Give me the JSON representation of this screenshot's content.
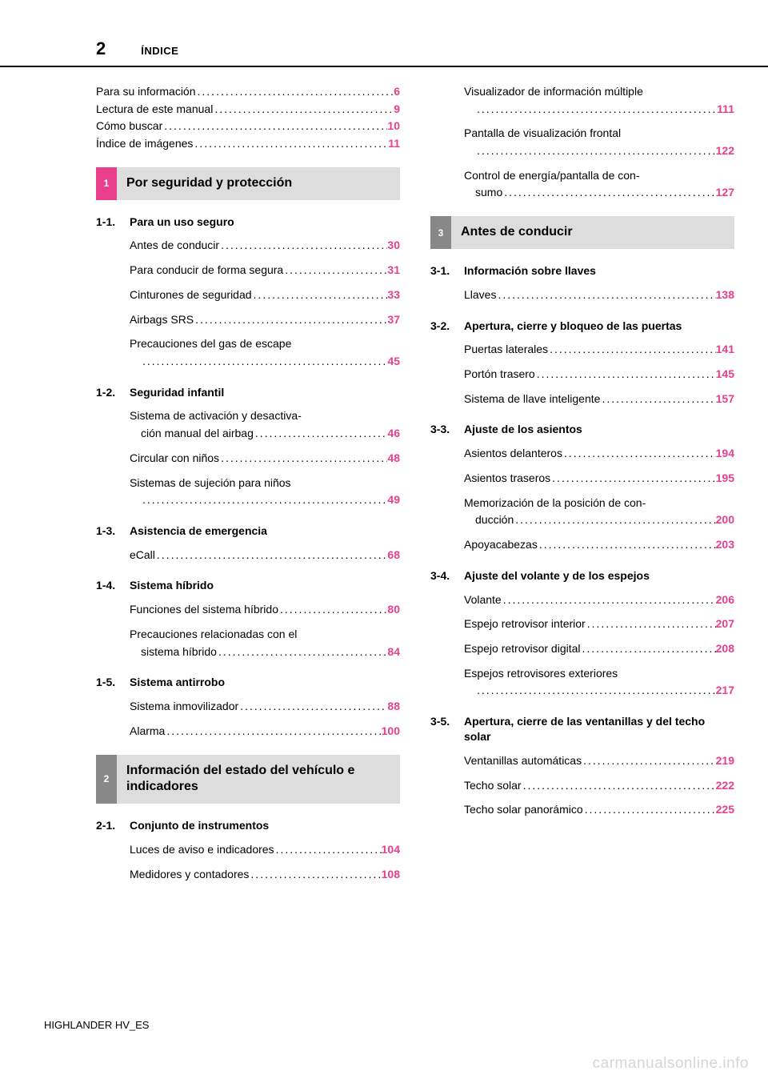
{
  "page": {
    "number": "2",
    "header": "ÍNDICE",
    "footer": "HIGHLANDER HV_ES",
    "watermark": "carmanualsonline.info"
  },
  "colors": {
    "accent": "#e83e8c",
    "gray_tab": "#888888",
    "chapter_bg": "#dddddd",
    "rule": "#000000",
    "watermark": "#d6d6d6"
  },
  "front": [
    {
      "label": "Para su información",
      "page": "6"
    },
    {
      "label": "Lectura de este manual",
      "page": "9"
    },
    {
      "label": "Cómo buscar",
      "page": "10"
    },
    {
      "label": "Índice de imágenes",
      "page": "11"
    }
  ],
  "chapters": [
    {
      "num": "1",
      "tab_color": "pink",
      "title": "Por seguridad y protección",
      "sections": [
        {
          "num": "1-1.",
          "title": "Para un uso seguro",
          "entries": [
            {
              "label": "Antes de conducir",
              "page": "30"
            },
            {
              "label": "Para conducir de forma segura",
              "page": "31",
              "tight": true
            },
            {
              "label": "Cinturones de seguridad",
              "page": "33"
            },
            {
              "label": "Airbags SRS",
              "page": "37"
            },
            {
              "label": "Precauciones del gas de escape",
              "page": "45",
              "wrap": true
            }
          ]
        },
        {
          "num": "1-2.",
          "title": "Seguridad infantil",
          "entries": [
            {
              "label1": "Sistema de activación y desactiva-",
              "label2": "ción manual del airbag",
              "page": "46",
              "twoline": true
            },
            {
              "label": "Circular con niños",
              "page": "48"
            },
            {
              "label": "Sistemas de sujeción para niños",
              "page": "49",
              "wrap": true
            }
          ]
        },
        {
          "num": "1-3.",
          "title": "Asistencia de emergencia",
          "entries": [
            {
              "label": "eCall",
              "page": "68"
            }
          ]
        },
        {
          "num": "1-4.",
          "title": "Sistema híbrido",
          "entries": [
            {
              "label": "Funciones del sistema híbrido",
              "page": "80",
              "tight": true
            },
            {
              "label1": "Precauciones relacionadas con el",
              "label2": "sistema híbrido",
              "page": "84",
              "twoline": true
            }
          ]
        },
        {
          "num": "1-5.",
          "title": "Sistema antirrobo",
          "entries": [
            {
              "label": "Sistema inmovilizador",
              "page": "88"
            },
            {
              "label": "Alarma",
              "page": "100"
            }
          ]
        }
      ]
    },
    {
      "num": "2",
      "tab_color": "gray",
      "title": "Información del estado del vehículo e indicadores",
      "sections": [
        {
          "num": "2-1.",
          "title": "Conjunto de instrumentos",
          "entries": [
            {
              "label": "Luces de aviso e indicadores",
              "page": "104",
              "tight": true
            },
            {
              "label": "Medidores y contadores",
              "page": "108"
            }
          ]
        }
      ]
    }
  ],
  "col2_pre": [
    {
      "label": "Visualizador de información múltiple",
      "page": "111",
      "wrap": true
    },
    {
      "label": "Pantalla de visualización frontal",
      "page": "122",
      "wrap": true
    },
    {
      "label1": "Control de energía/pantalla de con-",
      "label2": "sumo",
      "page": "127",
      "twoline": true
    }
  ],
  "chapter3": {
    "num": "3",
    "tab_color": "gray",
    "title": "Antes de conducir",
    "sections": [
      {
        "num": "3-1.",
        "title": "Información sobre llaves",
        "entries": [
          {
            "label": "Llaves",
            "page": "138"
          }
        ]
      },
      {
        "num": "3-2.",
        "title": "Apertura, cierre y bloqueo de las puertas",
        "entries": [
          {
            "label": "Puertas laterales",
            "page": "141"
          },
          {
            "label": "Portón trasero",
            "page": "145"
          },
          {
            "label": "Sistema de llave inteligente",
            "page": "157",
            "tight": true
          }
        ]
      },
      {
        "num": "3-3.",
        "title": "Ajuste de los asientos",
        "entries": [
          {
            "label": "Asientos delanteros",
            "page": "194"
          },
          {
            "label": "Asientos traseros",
            "page": "195"
          },
          {
            "label1": "Memorización de la posición de con-",
            "label2": "ducción",
            "page": "200",
            "twoline": true
          },
          {
            "label": "Apoyacabezas",
            "page": "203"
          }
        ]
      },
      {
        "num": "3-4.",
        "title": "Ajuste del volante y de los espejos",
        "entries": [
          {
            "label": "Volante",
            "page": "206"
          },
          {
            "label": "Espejo retrovisor interior",
            "page": "207"
          },
          {
            "label": "Espejo retrovisor digital",
            "page": "208"
          },
          {
            "label": "Espejos retrovisores exteriores",
            "page": "217",
            "wrap": true
          }
        ]
      },
      {
        "num": "3-5.",
        "title": "Apertura, cierre de las ventanillas y del techo solar",
        "entries": [
          {
            "label": "Ventanillas automáticas",
            "page": "219"
          },
          {
            "label": "Techo solar",
            "page": "222"
          },
          {
            "label": "Techo solar panorámico",
            "page": "225"
          }
        ]
      }
    ]
  }
}
